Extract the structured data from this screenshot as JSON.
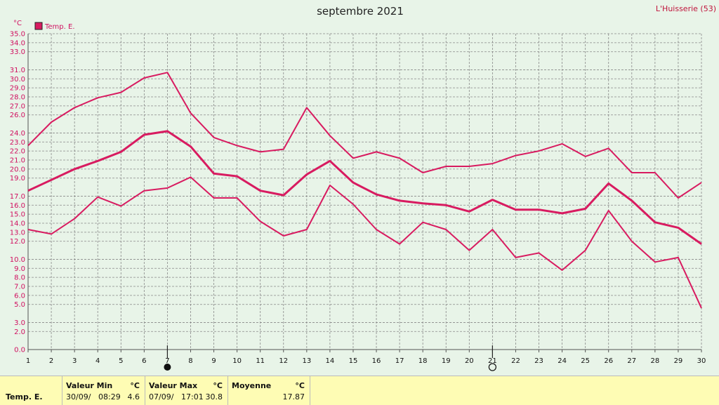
{
  "header": {
    "title": "septembre 2021",
    "location": "L'Huisserie (53)",
    "unit_label": "°C"
  },
  "legend": {
    "label": "Temp. E.",
    "color": "#d81b60"
  },
  "chart_data": {
    "type": "line",
    "title": "septembre 2021",
    "ylabel": "°C",
    "ylim": [
      0,
      35
    ],
    "y_ticks": [
      0.0,
      2.0,
      3.0,
      5.0,
      6.0,
      7.0,
      8.0,
      9.0,
      10.0,
      12.0,
      13.0,
      14.0,
      15.0,
      16.0,
      17.0,
      19.0,
      20.0,
      21.0,
      22.0,
      23.0,
      24.0,
      26.0,
      27.0,
      28.0,
      29.0,
      30.0,
      31.0,
      33.0,
      34.0,
      35.0
    ],
    "x": [
      1,
      2,
      3,
      4,
      5,
      6,
      7,
      8,
      9,
      10,
      11,
      12,
      13,
      14,
      15,
      16,
      17,
      18,
      19,
      20,
      21,
      22,
      23,
      24,
      25,
      26,
      27,
      28,
      29,
      30
    ],
    "grid": true,
    "legend_position": "top-left",
    "series": [
      {
        "name": "Temp. E.",
        "role": "max",
        "values": [
          22.6,
          25.2,
          26.8,
          27.9,
          28.5,
          30.1,
          30.7,
          26.2,
          23.5,
          22.6,
          21.9,
          22.2,
          26.8,
          23.7,
          21.2,
          21.9,
          21.2,
          19.6,
          20.3,
          20.3,
          20.6,
          21.5,
          22.0,
          22.8,
          21.4,
          22.3,
          19.6,
          19.6,
          16.8,
          18.5
        ]
      },
      {
        "name": "",
        "role": "mean",
        "values": [
          17.6,
          18.8,
          20.0,
          20.9,
          21.9,
          23.8,
          24.2,
          22.5,
          19.5,
          19.2,
          17.6,
          17.1,
          19.4,
          20.9,
          18.5,
          17.2,
          16.5,
          16.2,
          16.0,
          15.3,
          16.6,
          15.5,
          15.5,
          15.1,
          15.6,
          18.4,
          16.5,
          14.1,
          13.5,
          11.7
        ]
      },
      {
        "name": "",
        "role": "min",
        "values": [
          13.3,
          12.8,
          14.5,
          16.9,
          15.9,
          17.6,
          17.9,
          19.1,
          16.8,
          16.8,
          14.2,
          12.6,
          13.3,
          18.2,
          16.1,
          13.3,
          11.7,
          14.1,
          13.3,
          11.0,
          13.3,
          10.2,
          10.7,
          8.8,
          11.0,
          15.4,
          12.0,
          9.7,
          10.2,
          4.6
        ]
      }
    ],
    "moon_phases": [
      {
        "day": 7,
        "phase": "new-moon"
      },
      {
        "day": 21,
        "phase": "full-moon"
      }
    ]
  },
  "stats": {
    "row_label": "Temp. E.",
    "min": {
      "label": "Valeur Min",
      "unit": "°C",
      "date": "30/09/",
      "time": "08:29",
      "value": "4.6"
    },
    "max": {
      "label": "Valeur Max",
      "unit": "°C",
      "date": "07/09/",
      "time": "17:01",
      "value": "30.8"
    },
    "mean": {
      "label": "Moyenne",
      "unit": "°C",
      "value": "17.87"
    }
  }
}
